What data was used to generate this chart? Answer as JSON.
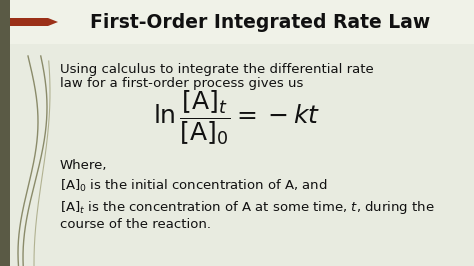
{
  "title": "First-Order Integrated Rate Law",
  "bg_color": "#e8ebe0",
  "title_bar_color": "#eef0e6",
  "left_bar_color": "#5a5a45",
  "arrow_color": "#9b3018",
  "title_color": "#111111",
  "body_text_color": "#111111",
  "line1": "Using calculus to integrate the differential rate",
  "line2": "law for a first-order process gives us",
  "where_text": "Where,",
  "title_fontsize": 13.5,
  "body_fontsize": 9.5,
  "eq_fontsize": 15
}
